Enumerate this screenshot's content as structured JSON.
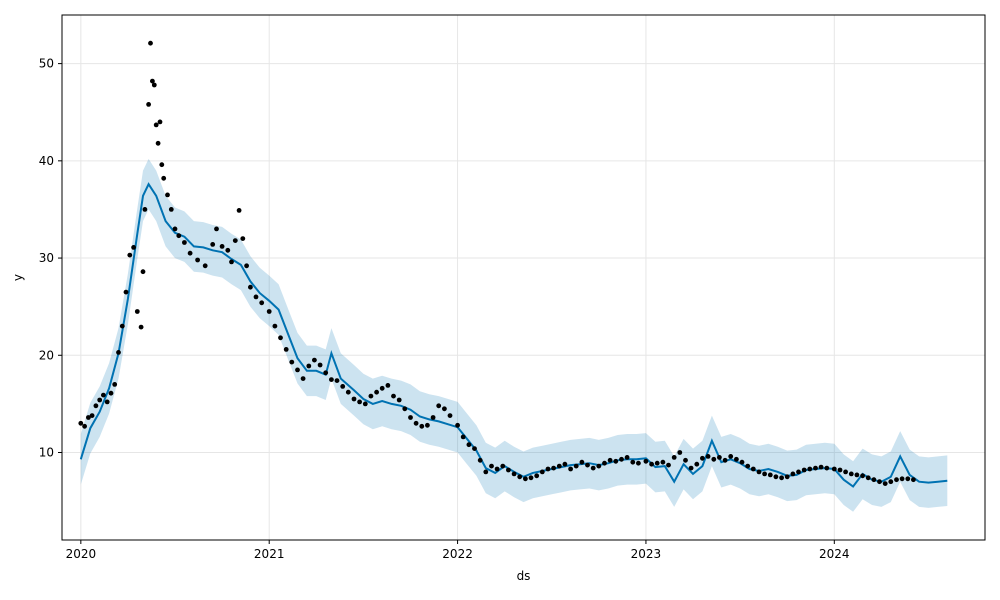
{
  "chart_data": {
    "type": "line",
    "title": "",
    "xlabel": "ds",
    "ylabel": "y",
    "xlim": [
      2019.9,
      2024.8
    ],
    "ylim": [
      1,
      55
    ],
    "x_ticks": [
      {
        "value": 2020,
        "label": "2020"
      },
      {
        "value": 2021,
        "label": "2021"
      },
      {
        "value": 2022,
        "label": "2022"
      },
      {
        "value": 2023,
        "label": "2023"
      },
      {
        "value": 2024,
        "label": "2024"
      }
    ],
    "y_ticks": [
      10,
      20,
      30,
      40,
      50
    ],
    "grid": true,
    "colors": {
      "forecast": "#0072B2",
      "band": "#0072B2",
      "observed": "#000000",
      "grid": "#e6e6e6",
      "axis": "#000000"
    },
    "forecast_line": [
      [
        2020.0,
        9.3
      ],
      [
        2020.05,
        12.5
      ],
      [
        2020.1,
        14.2
      ],
      [
        2020.15,
        16.6
      ],
      [
        2020.2,
        20.2
      ],
      [
        2020.25,
        25.8
      ],
      [
        2020.3,
        32.5
      ],
      [
        2020.33,
        36.4
      ],
      [
        2020.36,
        37.6
      ],
      [
        2020.4,
        36.4
      ],
      [
        2020.45,
        33.8
      ],
      [
        2020.5,
        32.6
      ],
      [
        2020.55,
        32.2
      ],
      [
        2020.6,
        31.2
      ],
      [
        2020.65,
        31.1
      ],
      [
        2020.7,
        30.8
      ],
      [
        2020.75,
        30.6
      ],
      [
        2020.8,
        29.9
      ],
      [
        2020.85,
        29.3
      ],
      [
        2020.9,
        27.6
      ],
      [
        2020.95,
        26.4
      ],
      [
        2021.0,
        25.6
      ],
      [
        2021.05,
        24.7
      ],
      [
        2021.1,
        22.2
      ],
      [
        2021.15,
        19.7
      ],
      [
        2021.2,
        18.4
      ],
      [
        2021.25,
        18.4
      ],
      [
        2021.3,
        18.0
      ],
      [
        2021.33,
        20.2
      ],
      [
        2021.38,
        17.6
      ],
      [
        2021.45,
        16.4
      ],
      [
        2021.5,
        15.5
      ],
      [
        2021.55,
        15.0
      ],
      [
        2021.6,
        15.3
      ],
      [
        2021.65,
        15.0
      ],
      [
        2021.7,
        14.8
      ],
      [
        2021.75,
        14.4
      ],
      [
        2021.8,
        13.7
      ],
      [
        2021.85,
        13.4
      ],
      [
        2021.9,
        13.2
      ],
      [
        2021.95,
        12.9
      ],
      [
        2022.0,
        12.6
      ],
      [
        2022.05,
        11.4
      ],
      [
        2022.1,
        10.2
      ],
      [
        2022.15,
        8.4
      ],
      [
        2022.2,
        7.9
      ],
      [
        2022.25,
        8.6
      ],
      [
        2022.3,
        8.0
      ],
      [
        2022.35,
        7.5
      ],
      [
        2022.4,
        7.9
      ],
      [
        2022.45,
        8.1
      ],
      [
        2022.5,
        8.3
      ],
      [
        2022.55,
        8.5
      ],
      [
        2022.6,
        8.7
      ],
      [
        2022.65,
        8.8
      ],
      [
        2022.7,
        8.9
      ],
      [
        2022.75,
        8.7
      ],
      [
        2022.8,
        8.9
      ],
      [
        2022.85,
        9.2
      ],
      [
        2022.9,
        9.3
      ],
      [
        2022.95,
        9.3
      ],
      [
        2023.0,
        9.4
      ],
      [
        2023.05,
        8.5
      ],
      [
        2023.1,
        8.6
      ],
      [
        2023.15,
        7.0
      ],
      [
        2023.2,
        8.8
      ],
      [
        2023.25,
        7.8
      ],
      [
        2023.3,
        8.6
      ],
      [
        2023.35,
        11.2
      ],
      [
        2023.4,
        9.0
      ],
      [
        2023.45,
        9.3
      ],
      [
        2023.5,
        8.9
      ],
      [
        2023.55,
        8.3
      ],
      [
        2023.6,
        8.1
      ],
      [
        2023.65,
        8.3
      ],
      [
        2023.7,
        8.0
      ],
      [
        2023.75,
        7.6
      ],
      [
        2023.8,
        7.7
      ],
      [
        2023.85,
        8.2
      ],
      [
        2023.9,
        8.3
      ],
      [
        2023.95,
        8.4
      ],
      [
        2024.0,
        8.3
      ],
      [
        2024.05,
        7.2
      ],
      [
        2024.1,
        6.5
      ],
      [
        2024.15,
        7.8
      ],
      [
        2024.2,
        7.2
      ],
      [
        2024.25,
        7.0
      ],
      [
        2024.3,
        7.5
      ],
      [
        2024.35,
        9.6
      ],
      [
        2024.4,
        7.7
      ],
      [
        2024.45,
        7.0
      ],
      [
        2024.5,
        6.9
      ],
      [
        2024.55,
        7.0
      ],
      [
        2024.6,
        7.1
      ]
    ],
    "band_half_width": 2.6,
    "observed_points": [
      [
        2020.0,
        13.0
      ],
      [
        2020.02,
        12.7
      ],
      [
        2020.04,
        13.6
      ],
      [
        2020.06,
        13.8
      ],
      [
        2020.08,
        14.8
      ],
      [
        2020.1,
        15.4
      ],
      [
        2020.12,
        15.9
      ],
      [
        2020.14,
        15.2
      ],
      [
        2020.16,
        16.1
      ],
      [
        2020.18,
        17.0
      ],
      [
        2020.2,
        20.3
      ],
      [
        2020.22,
        23.0
      ],
      [
        2020.24,
        26.5
      ],
      [
        2020.26,
        30.3
      ],
      [
        2020.28,
        31.1
      ],
      [
        2020.3,
        24.5
      ],
      [
        2020.32,
        22.9
      ],
      [
        2020.33,
        28.6
      ],
      [
        2020.34,
        35.0
      ],
      [
        2020.36,
        45.8
      ],
      [
        2020.37,
        52.1
      ],
      [
        2020.38,
        48.2
      ],
      [
        2020.39,
        47.8
      ],
      [
        2020.4,
        43.7
      ],
      [
        2020.41,
        41.8
      ],
      [
        2020.42,
        44.0
      ],
      [
        2020.43,
        39.6
      ],
      [
        2020.44,
        38.2
      ],
      [
        2020.46,
        36.5
      ],
      [
        2020.48,
        35.0
      ],
      [
        2020.5,
        33.0
      ],
      [
        2020.52,
        32.3
      ],
      [
        2020.55,
        31.6
      ],
      [
        2020.58,
        30.5
      ],
      [
        2020.62,
        29.8
      ],
      [
        2020.66,
        29.2
      ],
      [
        2020.7,
        31.4
      ],
      [
        2020.72,
        33.0
      ],
      [
        2020.75,
        31.2
      ],
      [
        2020.78,
        30.8
      ],
      [
        2020.8,
        29.6
      ],
      [
        2020.82,
        31.8
      ],
      [
        2020.84,
        34.9
      ],
      [
        2020.86,
        32.0
      ],
      [
        2020.88,
        29.2
      ],
      [
        2020.9,
        27.0
      ],
      [
        2020.93,
        26.0
      ],
      [
        2020.96,
        25.4
      ],
      [
        2021.0,
        24.5
      ],
      [
        2021.03,
        23.0
      ],
      [
        2021.06,
        21.8
      ],
      [
        2021.09,
        20.6
      ],
      [
        2021.12,
        19.3
      ],
      [
        2021.15,
        18.5
      ],
      [
        2021.18,
        17.6
      ],
      [
        2021.21,
        18.9
      ],
      [
        2021.24,
        19.5
      ],
      [
        2021.27,
        19.0
      ],
      [
        2021.3,
        18.2
      ],
      [
        2021.33,
        17.5
      ],
      [
        2021.36,
        17.4
      ],
      [
        2021.39,
        16.8
      ],
      [
        2021.42,
        16.2
      ],
      [
        2021.45,
        15.5
      ],
      [
        2021.48,
        15.2
      ],
      [
        2021.51,
        15.0
      ],
      [
        2021.54,
        15.8
      ],
      [
        2021.57,
        16.2
      ],
      [
        2021.6,
        16.6
      ],
      [
        2021.63,
        16.9
      ],
      [
        2021.66,
        15.8
      ],
      [
        2021.69,
        15.4
      ],
      [
        2021.72,
        14.5
      ],
      [
        2021.75,
        13.6
      ],
      [
        2021.78,
        13.0
      ],
      [
        2021.81,
        12.7
      ],
      [
        2021.84,
        12.8
      ],
      [
        2021.87,
        13.6
      ],
      [
        2021.9,
        14.8
      ],
      [
        2021.93,
        14.5
      ],
      [
        2021.96,
        13.8
      ],
      [
        2022.0,
        12.8
      ],
      [
        2022.03,
        11.6
      ],
      [
        2022.06,
        10.8
      ],
      [
        2022.09,
        10.4
      ],
      [
        2022.12,
        9.2
      ],
      [
        2022.15,
        8.0
      ],
      [
        2022.18,
        8.6
      ],
      [
        2022.21,
        8.3
      ],
      [
        2022.24,
        8.6
      ],
      [
        2022.27,
        8.2
      ],
      [
        2022.3,
        7.8
      ],
      [
        2022.33,
        7.5
      ],
      [
        2022.36,
        7.3
      ],
      [
        2022.39,
        7.4
      ],
      [
        2022.42,
        7.6
      ],
      [
        2022.45,
        8.0
      ],
      [
        2022.48,
        8.3
      ],
      [
        2022.51,
        8.4
      ],
      [
        2022.54,
        8.6
      ],
      [
        2022.57,
        8.8
      ],
      [
        2022.6,
        8.3
      ],
      [
        2022.63,
        8.6
      ],
      [
        2022.66,
        9.0
      ],
      [
        2022.69,
        8.7
      ],
      [
        2022.72,
        8.4
      ],
      [
        2022.75,
        8.6
      ],
      [
        2022.78,
        8.9
      ],
      [
        2022.81,
        9.2
      ],
      [
        2022.84,
        9.1
      ],
      [
        2022.87,
        9.3
      ],
      [
        2022.9,
        9.5
      ],
      [
        2022.93,
        9.0
      ],
      [
        2022.96,
        8.9
      ],
      [
        2023.0,
        9.1
      ],
      [
        2023.03,
        8.8
      ],
      [
        2023.06,
        8.9
      ],
      [
        2023.09,
        9.0
      ],
      [
        2023.12,
        8.7
      ],
      [
        2023.15,
        9.5
      ],
      [
        2023.18,
        10.0
      ],
      [
        2023.21,
        9.2
      ],
      [
        2023.24,
        8.4
      ],
      [
        2023.27,
        8.8
      ],
      [
        2023.3,
        9.4
      ],
      [
        2023.33,
        9.6
      ],
      [
        2023.36,
        9.3
      ],
      [
        2023.39,
        9.5
      ],
      [
        2023.42,
        9.2
      ],
      [
        2023.45,
        9.6
      ],
      [
        2023.48,
        9.3
      ],
      [
        2023.51,
        9.0
      ],
      [
        2023.54,
        8.6
      ],
      [
        2023.57,
        8.3
      ],
      [
        2023.6,
        8.0
      ],
      [
        2023.63,
        7.8
      ],
      [
        2023.66,
        7.7
      ],
      [
        2023.69,
        7.5
      ],
      [
        2023.72,
        7.4
      ],
      [
        2023.75,
        7.5
      ],
      [
        2023.78,
        7.8
      ],
      [
        2023.81,
        8.0
      ],
      [
        2023.84,
        8.2
      ],
      [
        2023.87,
        8.3
      ],
      [
        2023.9,
        8.4
      ],
      [
        2023.93,
        8.5
      ],
      [
        2023.96,
        8.4
      ],
      [
        2024.0,
        8.3
      ],
      [
        2024.03,
        8.2
      ],
      [
        2024.06,
        8.0
      ],
      [
        2024.09,
        7.8
      ],
      [
        2024.12,
        7.7
      ],
      [
        2024.15,
        7.6
      ],
      [
        2024.18,
        7.4
      ],
      [
        2024.21,
        7.2
      ],
      [
        2024.24,
        7.0
      ],
      [
        2024.27,
        6.8
      ],
      [
        2024.3,
        7.0
      ],
      [
        2024.33,
        7.2
      ],
      [
        2024.36,
        7.3
      ],
      [
        2024.39,
        7.3
      ],
      [
        2024.42,
        7.2
      ]
    ]
  }
}
